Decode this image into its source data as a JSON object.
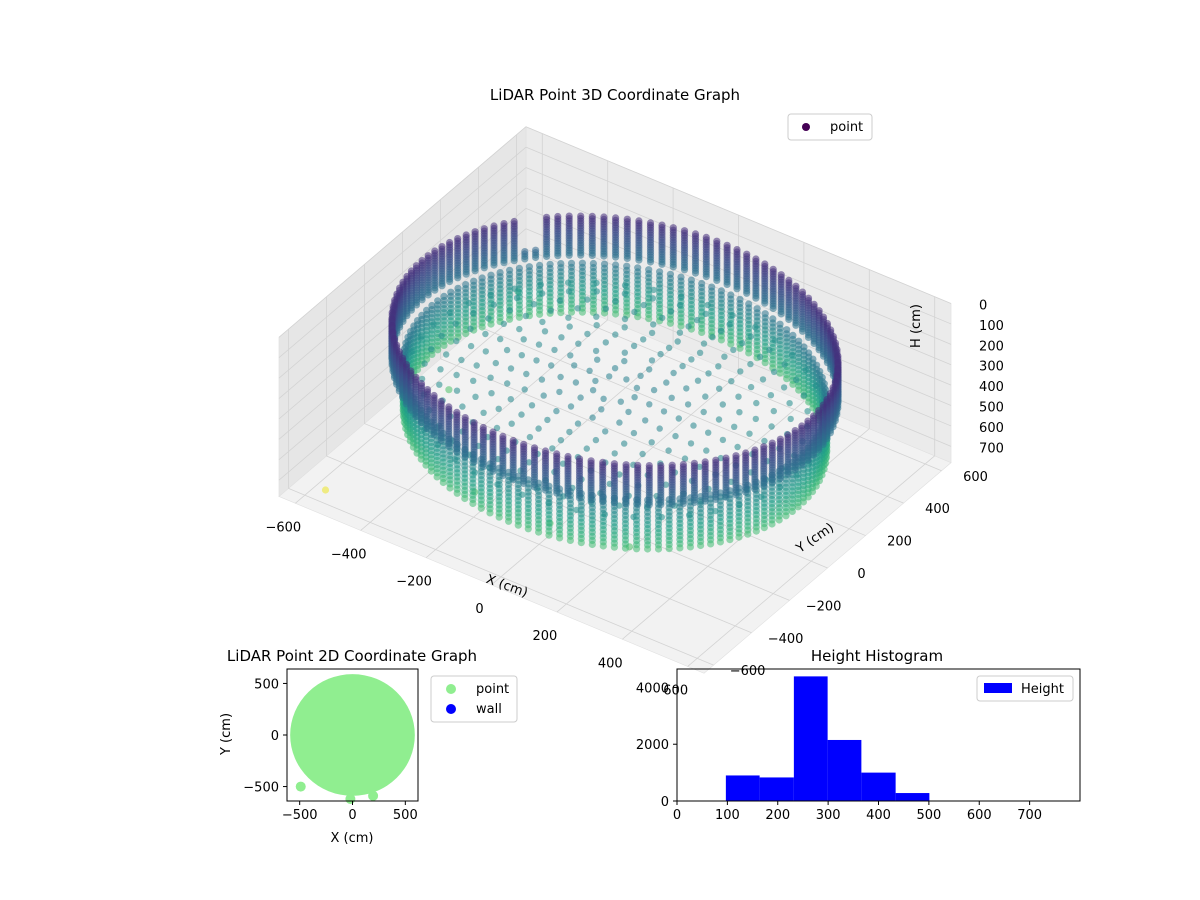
{
  "chart_data": [
    {
      "type": "scatter3d",
      "title": "LiDAR Point 3D Coordinate Graph",
      "xlabel": "X (cm)",
      "ylabel": "Y (cm)",
      "zlabel": "H (cm)",
      "xlim": [
        -650,
        650
      ],
      "ylim": [
        -650,
        650
      ],
      "zlim": [
        0,
        780
      ],
      "z_inverted": true,
      "xticks": [
        -600,
        -400,
        -200,
        0,
        200,
        400,
        600
      ],
      "yticks": [
        -600,
        -400,
        -200,
        0,
        200,
        400,
        600
      ],
      "zticks": [
        0,
        100,
        200,
        300,
        400,
        500,
        600,
        700
      ],
      "grid": true,
      "colormap": "viridis",
      "legend": {
        "placement": "top-right",
        "entries": [
          {
            "label": "point",
            "color": "#440154"
          }
        ]
      },
      "series": [
        {
          "name": "point",
          "description_free": true,
          "wall_radius": 590,
          "wall_top_h": 100,
          "wall_bottom_h": 300,
          "floor_h": 330,
          "lower_band": {
            "radius": 560,
            "h_range": [
              300,
              550
            ]
          },
          "outliers": [
            {
              "x": -560,
              "y": -560,
              "h": 760
            },
            {
              "x": -450,
              "y": -100,
              "h": 560
            },
            {
              "x": -150,
              "y": -480,
              "h": 560
            },
            {
              "x": 80,
              "y": -480,
              "h": 560
            },
            {
              "x": 300,
              "y": -440,
              "h": 560
            },
            {
              "x": -500,
              "y": 350,
              "h": 470
            }
          ]
        }
      ]
    },
    {
      "type": "scatter",
      "title": "LiDAR Point 2D Coordinate Graph",
      "xlabel": "X (cm)",
      "ylabel": "Y (cm)",
      "xlim": [
        -620,
        620
      ],
      "ylim": [
        -640,
        640
      ],
      "xticks": [
        -500,
        0,
        500
      ],
      "yticks": [
        -500,
        0,
        500
      ],
      "legend": {
        "placement": "outside-right",
        "entries": [
          {
            "label": "point",
            "color": "#90ee90"
          },
          {
            "label": "wall",
            "color": "#0000ff"
          }
        ]
      },
      "series": [
        {
          "name": "point",
          "color": "#90ee90",
          "disk_radius": 590,
          "outliers": [
            {
              "x": -490,
              "y": -500
            },
            {
              "x": 195,
              "y": -590
            },
            {
              "x": -20,
              "y": -620
            }
          ]
        },
        {
          "name": "wall",
          "color": "#0000ff",
          "points": []
        }
      ]
    },
    {
      "type": "bar",
      "title": "Height Histogram",
      "xlim": [
        0,
        800
      ],
      "ylim": [
        0,
        4650
      ],
      "xticks": [
        0,
        100,
        200,
        300,
        400,
        500,
        600,
        700
      ],
      "yticks": [
        0,
        2000,
        4000
      ],
      "legend": {
        "placement": "top-right",
        "entries": [
          {
            "label": "Height",
            "color": "#0000ff"
          }
        ]
      },
      "bins": [
        {
          "x0": 97,
          "x1": 164,
          "count": 900
        },
        {
          "x0": 164,
          "x1": 232,
          "count": 830
        },
        {
          "x0": 232,
          "x1": 299,
          "count": 4390
        },
        {
          "x0": 299,
          "x1": 366,
          "count": 2150
        },
        {
          "x0": 366,
          "x1": 434,
          "count": 1000
        },
        {
          "x0": 434,
          "x1": 501,
          "count": 280
        }
      ],
      "bar_color": "#0000ff"
    }
  ]
}
